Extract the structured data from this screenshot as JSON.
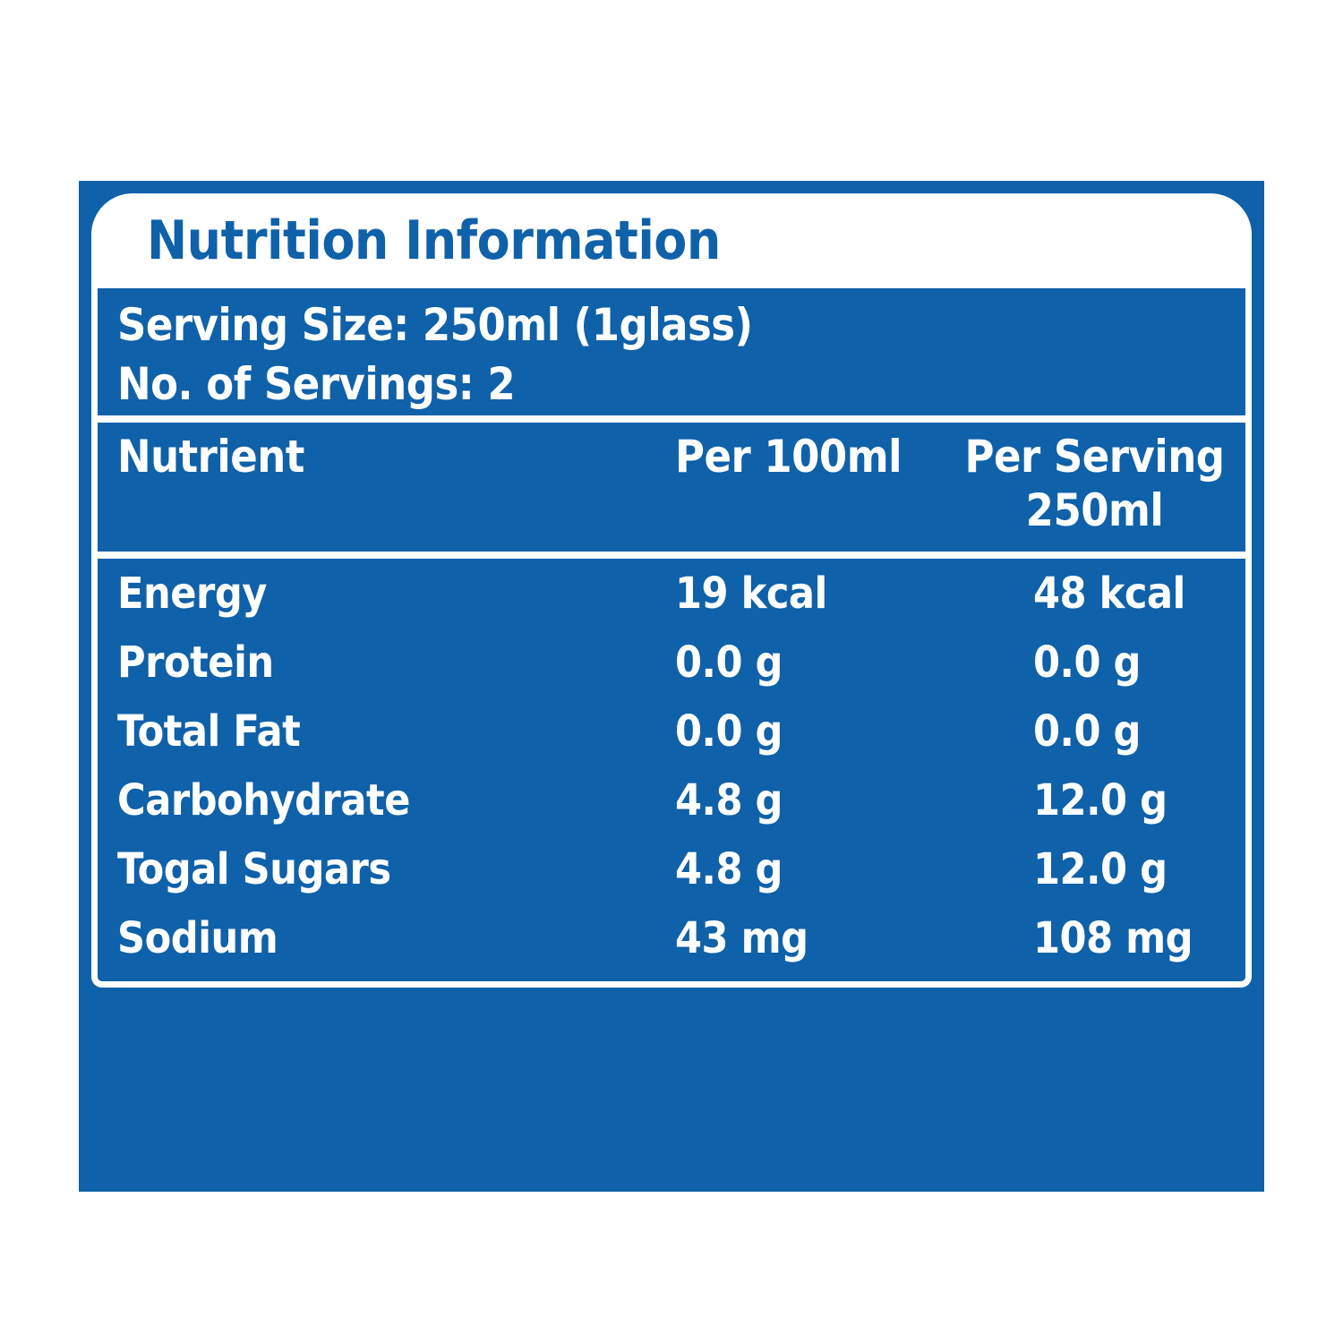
{
  "label": {
    "title": "Nutrition Information",
    "serving_size": "Serving Size: 250ml (1glass)",
    "servings": "No. of Servings: 2"
  },
  "table": {
    "header": {
      "nutrient": "Nutrient",
      "per_100ml": "Per 100ml",
      "per_serving_line1": "Per Serving",
      "per_serving_line2": "250ml"
    },
    "rows": [
      {
        "nutrient": "Energy",
        "per_100ml": "19 kcal",
        "per_serving": "48 kcal"
      },
      {
        "nutrient": "Protein",
        "per_100ml": "0.0 g",
        "per_serving": "0.0 g"
      },
      {
        "nutrient": "Total Fat",
        "per_100ml": "0.0 g",
        "per_serving": "0.0 g"
      },
      {
        "nutrient": "Carbohydrate",
        "per_100ml": "4.8 g",
        "per_serving": "12.0 g"
      },
      {
        "nutrient": "Togal Sugars",
        "per_100ml": "4.8 g",
        "per_serving": "12.0 g"
      },
      {
        "nutrient": "Sodium",
        "per_100ml": "43 mg",
        "per_serving": "108 mg"
      }
    ]
  },
  "colors": {
    "brand_blue": "#0F61A9",
    "text_white": "#FFFFFF"
  }
}
